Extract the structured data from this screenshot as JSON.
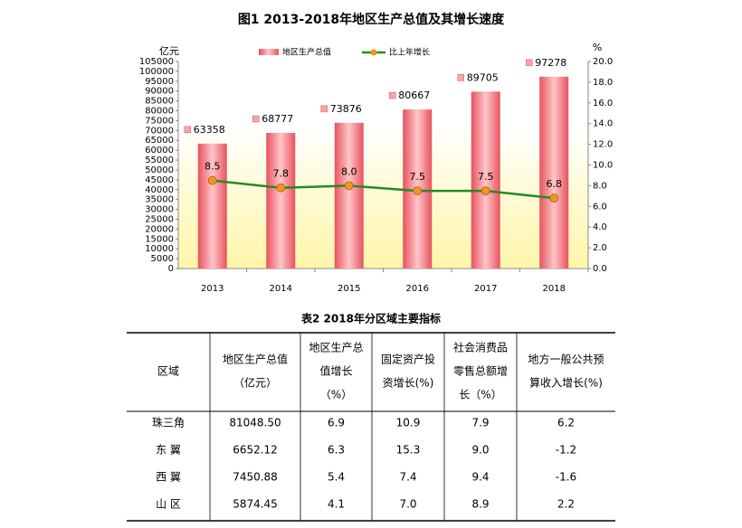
{
  "chart_data": {
    "type": "bar-line",
    "title": "图1 2013-2018年地区生产总值及其增长速度",
    "ylabel": "亿元",
    "y2label": "%",
    "categories": [
      "2013",
      "2014",
      "2015",
      "2016",
      "2017",
      "2018"
    ],
    "series": [
      {
        "name": "地区生产总值",
        "color": "#ee6f78",
        "type": "bar",
        "values": [
          63358,
          68777,
          73876,
          80667,
          89705,
          97278
        ]
      },
      {
        "name": "比上年增长",
        "color": "#228b22",
        "marker_color": "#f0961e",
        "type": "line",
        "axis": "y2",
        "values": [
          8.5,
          7.8,
          8.0,
          7.5,
          7.5,
          6.8
        ],
        "value_labels": [
          "8.5",
          "7.8",
          "8.0",
          "7.5",
          "7.5",
          "6.8"
        ]
      }
    ],
    "ylim": [
      0,
      105000
    ],
    "yticks": [
      0,
      5000,
      10000,
      15000,
      20000,
      25000,
      30000,
      35000,
      40000,
      45000,
      50000,
      55000,
      60000,
      65000,
      70000,
      75000,
      80000,
      85000,
      90000,
      95000,
      100000,
      105000
    ],
    "y2lim": [
      0,
      20
    ],
    "y2ticks": [
      {
        "value": 0,
        "label": "0.0"
      },
      {
        "value": 2,
        "label": "2.0"
      },
      {
        "value": 4,
        "label": "4.0"
      },
      {
        "value": 6,
        "label": "6.0"
      },
      {
        "value": 8,
        "label": "8.0"
      },
      {
        "value": 10,
        "label": "10.0"
      },
      {
        "value": 12,
        "label": "12.0"
      },
      {
        "value": 14,
        "label": "14.0"
      },
      {
        "value": 16,
        "label": "16.0"
      },
      {
        "value": 18,
        "label": "18.0"
      },
      {
        "value": 20,
        "label": "20.0"
      }
    ]
  },
  "table": {
    "title": "表2 2018年分区域主要指标",
    "header": [
      [
        "区域"
      ],
      [
        "地区生产总值",
        "（亿元）"
      ],
      [
        "地区生产总",
        "值增长",
        "（%）"
      ],
      [
        "固定资产投",
        "资增长(%)"
      ],
      [
        "社会消费品",
        "零售总额增",
        "长（%）"
      ],
      [
        "地方一般公共预",
        "算收入增长(%)"
      ]
    ],
    "rows": [
      [
        "珠三角",
        "81048.50",
        "6.9",
        "10.9",
        "7.9",
        "6.2"
      ],
      [
        "东 翼",
        "6652.12",
        "6.3",
        "15.3",
        "9.0",
        "-1.2"
      ],
      [
        "西 翼",
        "7450.88",
        "5.4",
        "7.4",
        "9.4",
        "-1.6"
      ],
      [
        "山 区",
        "5874.45",
        "4.1",
        "7.0",
        "8.9",
        "2.2"
      ]
    ]
  }
}
